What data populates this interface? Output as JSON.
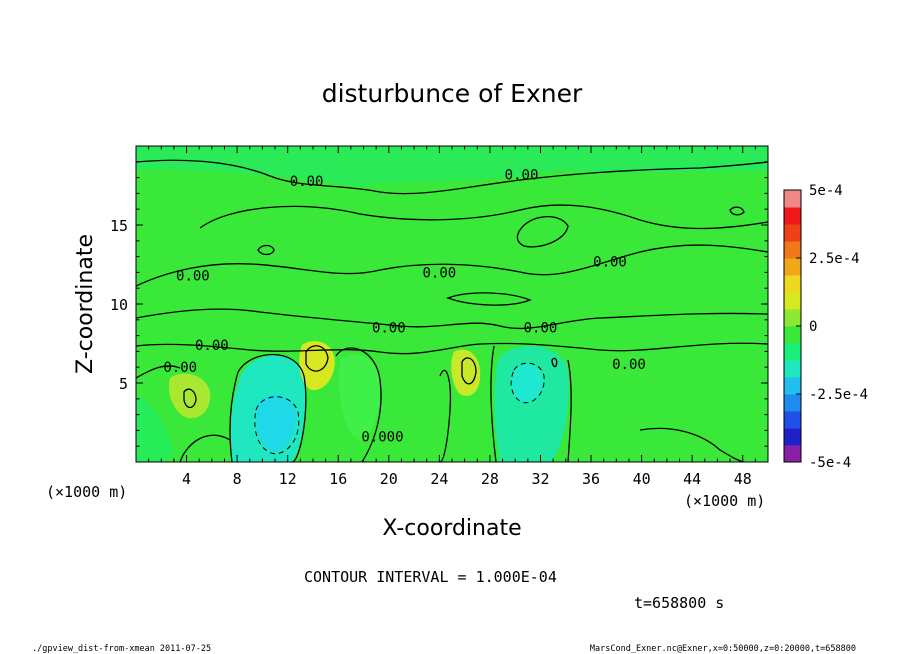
{
  "chart_data": {
    "type": "heatmap",
    "title": "disturbunce of Exner",
    "xlabel": "X-coordinate",
    "ylabel": "Z-coordinate",
    "x_unit": "(×1000 m)",
    "y_unit": "(×1000 m)",
    "x_ticks": [
      4,
      8,
      12,
      16,
      20,
      24,
      28,
      32,
      36,
      40,
      44,
      48
    ],
    "y_ticks": [
      5,
      10,
      15
    ],
    "xlim": [
      0,
      50
    ],
    "ylim": [
      0,
      20
    ],
    "colorbar": {
      "range": [
        -0.0005,
        0.0005
      ],
      "tick_labels": [
        "5e-4",
        "2.5e-4",
        "0",
        "-2.5e-4",
        "-5e-4"
      ],
      "tick_values": [
        0.0005,
        0.00025,
        0,
        -0.00025,
        -0.0005
      ],
      "colors": [
        "#8a1fa8",
        "#2020c8",
        "#2050e8",
        "#1f8af0",
        "#1fc0f0",
        "#1fe8c0",
        "#18f07a",
        "#3ae83a",
        "#8ce830",
        "#d8e820",
        "#f0d820",
        "#f0a818",
        "#f07818",
        "#f04018",
        "#f01818",
        "#f08888"
      ]
    },
    "contour_labels": [
      {
        "x": 13.5,
        "z": 17.8,
        "text": "0.00"
      },
      {
        "x": 30.5,
        "z": 18.2,
        "text": "0.00"
      },
      {
        "x": 4.5,
        "z": 11.8,
        "text": "0.00"
      },
      {
        "x": 24,
        "z": 12.0,
        "text": "0.00"
      },
      {
        "x": 37.5,
        "z": 12.7,
        "text": "0.00"
      },
      {
        "x": 20,
        "z": 8.5,
        "text": "0.00"
      },
      {
        "x": 6,
        "z": 7.4,
        "text": "0.00"
      },
      {
        "x": 3.5,
        "z": 6.0,
        "text": "0.00"
      },
      {
        "x": 32,
        "z": 8.5,
        "text": "0.00"
      },
      {
        "x": 39,
        "z": 6.2,
        "text": "0.00"
      },
      {
        "x": 19.5,
        "z": 1.6,
        "text": "0.000"
      }
    ],
    "annotations": {
      "contour_interval": "CONTOUR INTERVAL = 1.000E-04",
      "time": "t=658800 s",
      "footer_left": "./gpview_dist-from-xmean  2011-07-25",
      "footer_right": "MarsCond_Exner.nc@Exner,x=0:50000,z=0:20000,t=658800"
    }
  }
}
